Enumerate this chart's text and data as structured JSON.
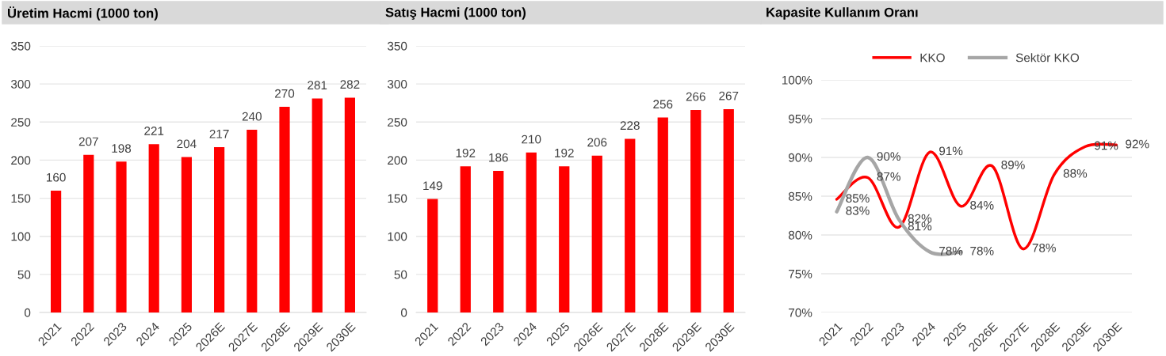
{
  "chart_data": [
    {
      "type": "bar",
      "title": "Üretim Hacmi (1000 ton)",
      "categories": [
        "2021",
        "2022",
        "2023",
        "2024",
        "2025",
        "2026E",
        "2027E",
        "2028E",
        "2029E",
        "2030E"
      ],
      "values": [
        160,
        207,
        198,
        221,
        204,
        217,
        240,
        270,
        281,
        282
      ],
      "color": "#ff0000",
      "ylim": [
        0,
        350
      ],
      "yticks": [
        0,
        50,
        100,
        150,
        200,
        250,
        300,
        350
      ],
      "grid": "y",
      "data_labels": true
    },
    {
      "type": "bar",
      "title": "Satış Hacmi (1000 ton)",
      "categories": [
        "2021",
        "2022",
        "2023",
        "2024",
        "2025",
        "2026E",
        "2027E",
        "2028E",
        "2029E",
        "2030E"
      ],
      "values": [
        149,
        192,
        186,
        210,
        192,
        206,
        228,
        256,
        266,
        267
      ],
      "color": "#ff0000",
      "ylim": [
        0,
        350
      ],
      "yticks": [
        0,
        50,
        100,
        150,
        200,
        250,
        300,
        350
      ],
      "grid": "y",
      "data_labels": true
    },
    {
      "type": "line",
      "title": "Kapasite Kullanım Oranı",
      "categories": [
        "2021",
        "2022",
        "2023",
        "2024",
        "2025",
        "2026E",
        "2027E",
        "2028E",
        "2029E",
        "2030E"
      ],
      "series": [
        {
          "name": "KKO",
          "color": "#ff0000",
          "values": [
            84.6,
            87.4,
            81.0,
            90.7,
            83.7,
            88.9,
            78.2,
            87.8,
            91.4,
            91.6
          ],
          "value_labels": [
            "85%",
            "87%",
            "81%",
            "91%",
            "84%",
            "89%",
            "78%",
            "88%",
            "91%",
            "92%"
          ]
        },
        {
          "name": "Sektör KKO",
          "color": "#a6a6a6",
          "values": [
            83.0,
            90.0,
            82.0,
            77.8,
            77.8,
            null,
            null,
            null,
            null,
            null
          ],
          "value_labels": [
            "83%",
            "90%",
            "82%",
            "78%",
            "78%",
            null,
            null,
            null,
            null,
            null
          ]
        }
      ],
      "ylim": [
        70,
        100
      ],
      "yticks": [
        {
          "value": 70,
          "label": "70%"
        },
        {
          "value": 75,
          "label": "75%"
        },
        {
          "value": 80,
          "label": "80%"
        },
        {
          "value": 85,
          "label": "85%"
        },
        {
          "value": 90,
          "label": "90%"
        },
        {
          "value": 95,
          "label": "95%"
        },
        {
          "value": 100,
          "label": "100%"
        }
      ],
      "grid": "y",
      "legend": "top",
      "marker": "none",
      "line_style": "solid"
    }
  ]
}
